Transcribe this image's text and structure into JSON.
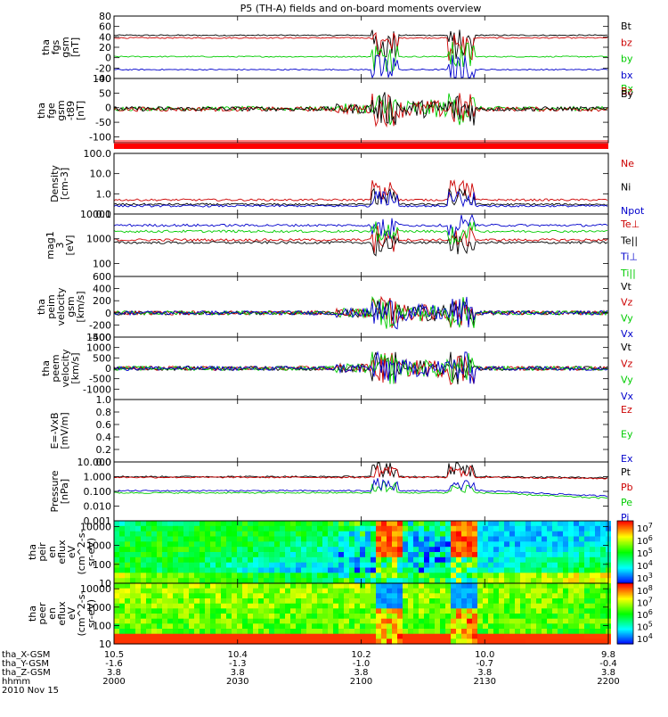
{
  "title": "P5 (TH-A) fields and on-board moments overview",
  "footer": {
    "rows": [
      "tha_X-GSM",
      "tha_Y-GSM",
      "tha_Z-GSM",
      "hhmm",
      "2010 Nov 15"
    ],
    "columns": [
      [
        "10.5",
        "-1.6",
        "3.8",
        "2000"
      ],
      [
        "10.4",
        "-1.3",
        "3.8",
        "2030"
      ],
      [
        "10.2",
        "-1.0",
        "3.8",
        "2100"
      ],
      [
        "10.0",
        "-0.7",
        "3.8",
        "2130"
      ],
      [
        "9.8",
        "-0.4",
        "3.8",
        "2200"
      ]
    ]
  },
  "colors": {
    "black": "#000000",
    "red": "#cc0000",
    "green": "#00cc00",
    "blue": "#0000cc",
    "flag": "#ff0000"
  },
  "chart_data": [
    {
      "type": "line",
      "ylabel": [
        "tha",
        "fgs",
        "gsm",
        "[nT]"
      ],
      "ylim": [
        -40,
        80
      ],
      "ticks": [
        "80",
        "60",
        "40",
        "20",
        "0",
        "-20",
        "-40"
      ],
      "series": [
        {
          "name": "Bt",
          "color": "black",
          "level": 43
        },
        {
          "name": "bz",
          "color": "red",
          "level": 38
        },
        {
          "name": "by",
          "color": "green",
          "level": 2
        },
        {
          "name": "bx",
          "color": "blue",
          "level": -23
        }
      ]
    },
    {
      "type": "line",
      "ylabel": [
        "tha",
        "fge",
        "gsm",
        "-t89",
        "[nT]"
      ],
      "ylim": [
        -120,
        100
      ],
      "ticks": [
        "100",
        "50",
        "0",
        "-50",
        "-100"
      ],
      "series": [
        {
          "name": "Bx",
          "color": "green",
          "level": -3
        },
        {
          "name": "Bz",
          "color": "red",
          "level": -5
        },
        {
          "name": "By",
          "color": "black",
          "level": -4
        }
      ]
    },
    {
      "type": "line",
      "ylabel": [
        "Density",
        "[cm-3]"
      ],
      "ylim": [
        0.1,
        100
      ],
      "log": true,
      "ticks": [
        "100.0",
        "10.0",
        "1.0",
        "0.1"
      ],
      "series": [
        {
          "name": "Ne",
          "color": "red",
          "level": 0.5
        },
        {
          "name": "Ni",
          "color": "black",
          "level": 0.3
        },
        {
          "name": "Npot",
          "color": "blue",
          "level": 0.25
        }
      ]
    },
    {
      "type": "line",
      "ylabel": [
        "mag1",
        "3",
        "[eV]"
      ],
      "ylim": [
        30,
        10000
      ],
      "log": true,
      "ticks": [
        "10000",
        "1000",
        "100"
      ],
      "series": [
        {
          "name": "Te⊥",
          "color": "red",
          "level": 900
        },
        {
          "name": "Te||",
          "color": "black",
          "level": 700
        },
        {
          "name": "Ti⊥",
          "color": "blue",
          "level": 3500
        },
        {
          "name": "Ti||",
          "color": "green",
          "level": 2000
        }
      ]
    },
    {
      "type": "line",
      "ylabel": [
        "tha",
        "peim",
        "velocity",
        "gsm",
        "[km/s]"
      ],
      "ylim": [
        -400,
        600
      ],
      "ticks": [
        "600",
        "400",
        "200",
        "0",
        "-200",
        "-400"
      ],
      "series": [
        {
          "name": "Vt",
          "color": "black",
          "level": 0
        },
        {
          "name": "Vz",
          "color": "red",
          "level": 0
        },
        {
          "name": "Vy",
          "color": "green",
          "level": 0
        },
        {
          "name": "Vx",
          "color": "blue",
          "level": 0
        }
      ]
    },
    {
      "type": "line",
      "ylabel": [
        "tha",
        "peem",
        "velocity",
        "[km/s]"
      ],
      "ylim": [
        -1500,
        1500
      ],
      "ticks": [
        "1500",
        "1000",
        "500",
        "0",
        "-500",
        "-1000"
      ],
      "series": [
        {
          "name": "Vt",
          "color": "black",
          "level": 0
        },
        {
          "name": "Vz",
          "color": "red",
          "level": 0
        },
        {
          "name": "Vy",
          "color": "green",
          "level": 0
        },
        {
          "name": "Vx",
          "color": "blue",
          "level": 0
        }
      ]
    },
    {
      "type": "line",
      "ylabel": [
        "E=-VxB",
        "[mV/m]"
      ],
      "ylim": [
        0,
        1
      ],
      "ticks": [
        "1.0",
        "0.8",
        "0.6",
        "0.4",
        "0.2",
        "0.0"
      ],
      "series": [
        {
          "name": "Ez",
          "color": "red"
        },
        {
          "name": "Ey",
          "color": "green"
        },
        {
          "name": "Ex",
          "color": "blue"
        }
      ]
    },
    {
      "type": "line",
      "ylabel": [
        "Pressure",
        "[nPa]"
      ],
      "ylim": [
        0.001,
        10
      ],
      "log": true,
      "ticks": [
        "10.000",
        "1.000",
        "0.100",
        "0.010",
        "0.001"
      ],
      "series": [
        {
          "name": "Pt",
          "color": "black",
          "level": 1.0
        },
        {
          "name": "Pb",
          "color": "red",
          "level": 0.9
        },
        {
          "name": "Pe",
          "color": "green",
          "level": 0.08
        },
        {
          "name": "Pi",
          "color": "blue",
          "level": 0.11
        }
      ]
    },
    {
      "type": "heatmap",
      "ylabel": [
        "tha",
        "peir",
        "en",
        "eflux",
        "eV",
        "(cm^2-s-",
        "sr-eV)"
      ],
      "ylim": [
        10,
        20000
      ],
      "log": true,
      "ticks": [
        "10000",
        "1000",
        "100",
        "10"
      ],
      "colorbar": {
        "ticks": [
          "10^7",
          "10^6",
          "10^5",
          "10^4",
          "10^3"
        ]
      }
    },
    {
      "type": "heatmap",
      "ylabel": [
        "tha",
        "peer",
        "en",
        "eflux",
        "eV",
        "(cm^2-s-",
        "sr-eV)"
      ],
      "ylim": [
        10,
        20000
      ],
      "log": true,
      "ticks": [
        "10000",
        "1000",
        "100",
        "10"
      ],
      "colorbar": {
        "ticks": [
          "10^8",
          "10^7",
          "10^6",
          "10^5",
          "10^4"
        ]
      }
    }
  ]
}
